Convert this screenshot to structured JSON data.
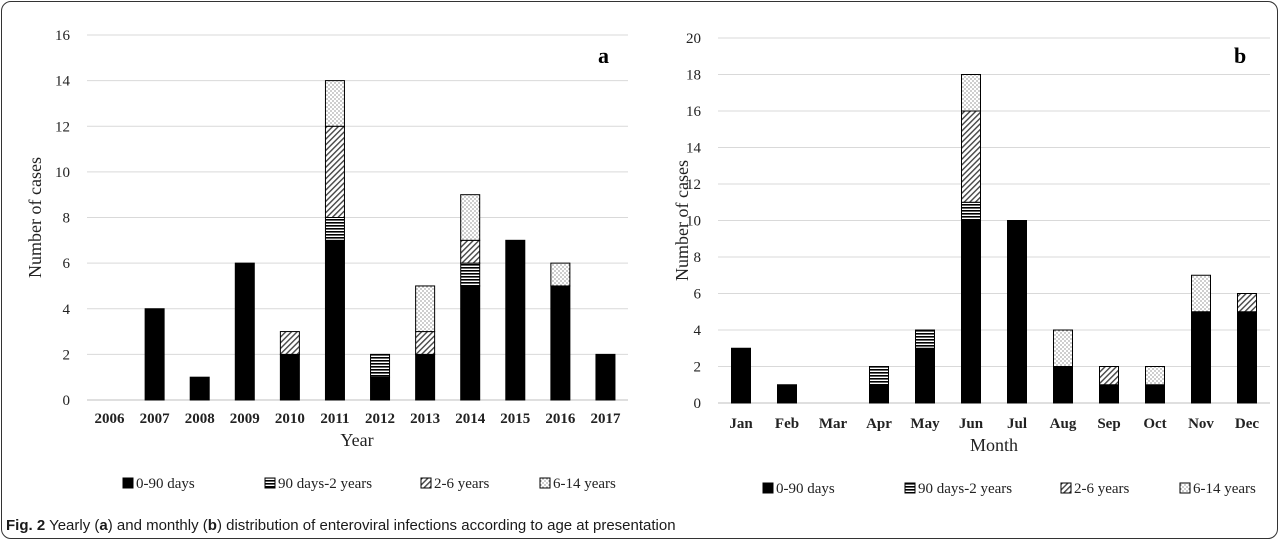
{
  "figure": {
    "caption_label": "Fig. 2",
    "caption_text_1": " Yearly (",
    "caption_a": "a",
    "caption_text_2": ") and monthly (",
    "caption_b": "b",
    "caption_text_3": ") distribution of enteroviral infections according to age at presentation"
  },
  "colors": {
    "s0": "#000000",
    "s1": "#000000",
    "s2": "#444444",
    "s3": "#555555",
    "grid": "#d9d9d9",
    "axis": "#bfbfbf"
  },
  "chart_data": [
    {
      "type": "bar",
      "stacked": true,
      "panel_label": "a",
      "xlabel": "Year",
      "ylabel": "Number of cases",
      "ylim": [
        0,
        16
      ],
      "ytick_step": 2,
      "grid": true,
      "legend_position": "bottom",
      "categories": [
        "2006",
        "2007",
        "2008",
        "2009",
        "2010",
        "2011",
        "2012",
        "2013",
        "2014",
        "2015",
        "2016",
        "2017"
      ],
      "series": [
        {
          "name": "0-90 days",
          "values": [
            0,
            4,
            1,
            6,
            2,
            7,
            1,
            2,
            5,
            7,
            5,
            2
          ]
        },
        {
          "name": "90 days-2 years",
          "values": [
            0,
            0,
            0,
            0,
            0,
            1,
            1,
            0,
            1,
            0,
            0,
            0
          ]
        },
        {
          "name": "2-6 years",
          "values": [
            0,
            0,
            0,
            0,
            1,
            4,
            0,
            1,
            1,
            0,
            0,
            0
          ]
        },
        {
          "name": "6-14 years",
          "values": [
            0,
            0,
            0,
            0,
            0,
            2,
            0,
            2,
            2,
            0,
            1,
            0
          ]
        }
      ]
    },
    {
      "type": "bar",
      "stacked": true,
      "panel_label": "b",
      "xlabel": "Month",
      "ylabel": "Number of cases",
      "ylim": [
        0,
        20
      ],
      "ytick_step": 2,
      "grid": true,
      "legend_position": "bottom",
      "categories": [
        "Jan",
        "Feb",
        "Mar",
        "Apr",
        "May",
        "Jun",
        "Jul",
        "Aug",
        "Sep",
        "Oct",
        "Nov",
        "Dec"
      ],
      "series": [
        {
          "name": "0-90 days",
          "values": [
            3,
            1,
            0,
            1,
            3,
            10,
            10,
            2,
            1,
            1,
            5,
            5
          ]
        },
        {
          "name": "90 days-2 years",
          "values": [
            0,
            0,
            0,
            1,
            1,
            1,
            0,
            0,
            0,
            0,
            0,
            0
          ]
        },
        {
          "name": "2-6 years",
          "values": [
            0,
            0,
            0,
            0,
            0,
            5,
            0,
            0,
            1,
            0,
            0,
            1
          ]
        },
        {
          "name": "6-14 years",
          "values": [
            0,
            0,
            0,
            0,
            0,
            2,
            0,
            2,
            0,
            1,
            2,
            0
          ]
        }
      ]
    }
  ]
}
